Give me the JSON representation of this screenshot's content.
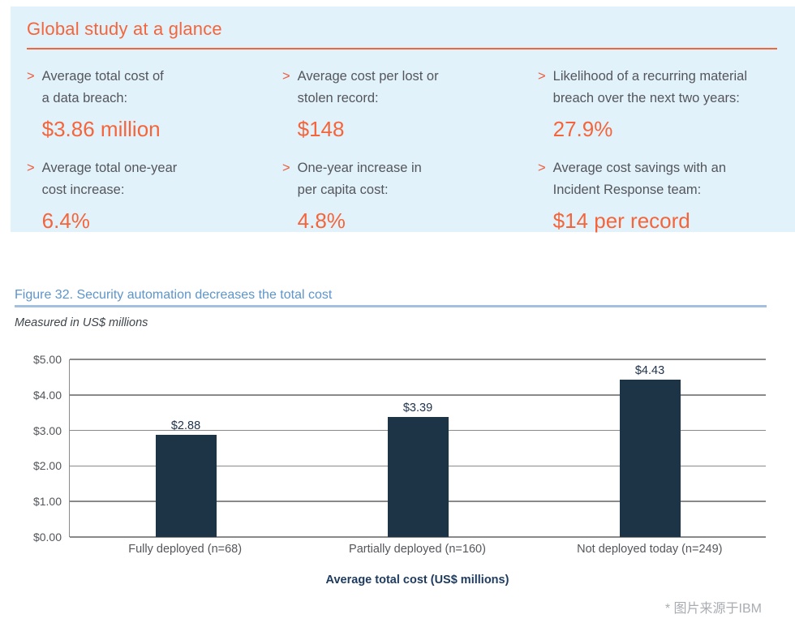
{
  "glance_panel": {
    "title": "Global study at a glance",
    "bullet": ">",
    "stats": [
      {
        "label": "Average total cost of\na data breach:",
        "value": "$3.86 million"
      },
      {
        "label": "Average cost per lost or\nstolen record:",
        "value": "$148"
      },
      {
        "label": "Likelihood of a recurring material\nbreach over the next two years:",
        "value": "27.9%"
      },
      {
        "label": "Average total one-year\ncost increase:",
        "value": "6.4%"
      },
      {
        "label": "One-year increase in\nper capita cost:",
        "value": "4.8%"
      },
      {
        "label": "Average cost savings with an\nIncident Response team:",
        "value": "$14 per record"
      }
    ]
  },
  "figure": {
    "caption": "Figure 32. Security automation decreases the total cost",
    "unit_note": "Measured in US$ millions"
  },
  "chart_data": {
    "type": "bar",
    "title": "Figure 32. Security automation decreases the total cost",
    "subtitle": "Measured in US$ millions",
    "categories": [
      "Fully deployed (n=68)",
      "Partially deployed (n=160)",
      "Not deployed today (n=249)"
    ],
    "values": [
      2.88,
      3.39,
      4.43
    ],
    "data_labels": [
      "$2.88",
      "$3.39",
      "$4.43"
    ],
    "xlabel": "Average total cost (US$ millions)",
    "ylabel": "",
    "ylim": [
      0,
      5
    ],
    "y_ticks": [
      {
        "value": 5,
        "label": "$5.00"
      },
      {
        "value": 4,
        "label": "$4.00"
      },
      {
        "value": 3,
        "label": "$3.00"
      },
      {
        "value": 2,
        "label": "$2.00"
      },
      {
        "value": 1,
        "label": "$1.00"
      },
      {
        "value": 0,
        "label": "$0.00"
      }
    ],
    "grid": true,
    "legend": false,
    "bar_color": "#1d3447"
  },
  "footnote": "* 图片来源于IBM",
  "colors": {
    "accent_orange": "#f4653c",
    "panel_background": "#e2f2fa",
    "caption_blue": "#5d95cb",
    "rule_blue": "#a3c0e0",
    "bar_navy": "#1d3447",
    "text_gray": "#54565b",
    "gridline_gray": "#8a8a8a",
    "axis_title_navy": "#1d3a5f",
    "footnote_gray": "#a9adb2"
  }
}
